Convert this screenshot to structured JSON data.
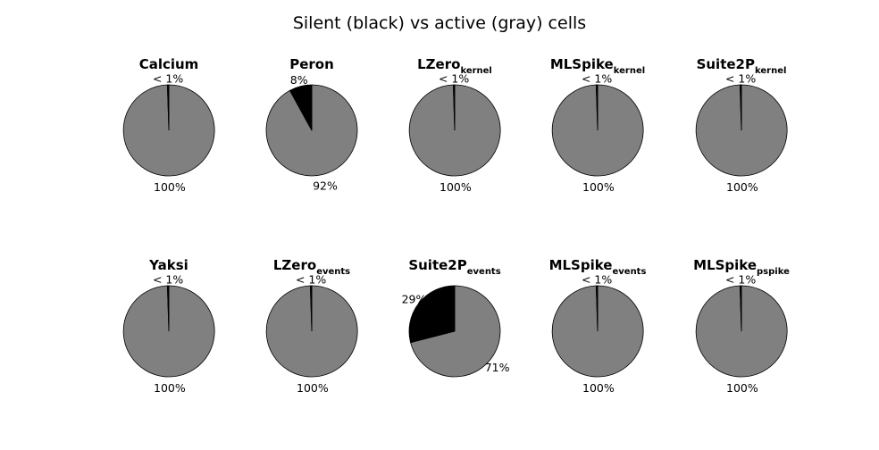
{
  "chart_data": {
    "type": "pie",
    "title": "Silent (black) vs active (gray) cells",
    "colors": {
      "silent": "#000000",
      "active": "#808080",
      "edge": "#000000"
    },
    "pies": [
      {
        "title": "Calcium",
        "subscript": "",
        "silent_fraction": 0.005,
        "silent_label": "< 1%",
        "active_label": "100%"
      },
      {
        "title": "Peron",
        "subscript": "",
        "silent_fraction": 0.08,
        "silent_label": "8%",
        "active_label": "92%"
      },
      {
        "title": "LZero",
        "subscript": "kernel",
        "silent_fraction": 0.005,
        "silent_label": "< 1%",
        "active_label": "100%"
      },
      {
        "title": "MLSpike",
        "subscript": "kernel",
        "silent_fraction": 0.005,
        "silent_label": "< 1%",
        "active_label": "100%"
      },
      {
        "title": "Suite2P",
        "subscript": "kernel",
        "silent_fraction": 0.005,
        "silent_label": "< 1%",
        "active_label": "100%"
      },
      {
        "title": "Yaksi",
        "subscript": "",
        "silent_fraction": 0.005,
        "silent_label": "< 1%",
        "active_label": "100%"
      },
      {
        "title": "LZero",
        "subscript": "events",
        "silent_fraction": 0.005,
        "silent_label": "< 1%",
        "active_label": "100%"
      },
      {
        "title": "Suite2P",
        "subscript": "events",
        "silent_fraction": 0.29,
        "silent_label": "29%",
        "active_label": "71%"
      },
      {
        "title": "MLSpike",
        "subscript": "events",
        "silent_fraction": 0.005,
        "silent_label": "< 1%",
        "active_label": "100%"
      },
      {
        "title": "MLSpike",
        "subscript": "pspike",
        "silent_fraction": 0.005,
        "silent_label": "< 1%",
        "active_label": "100%"
      }
    ]
  }
}
